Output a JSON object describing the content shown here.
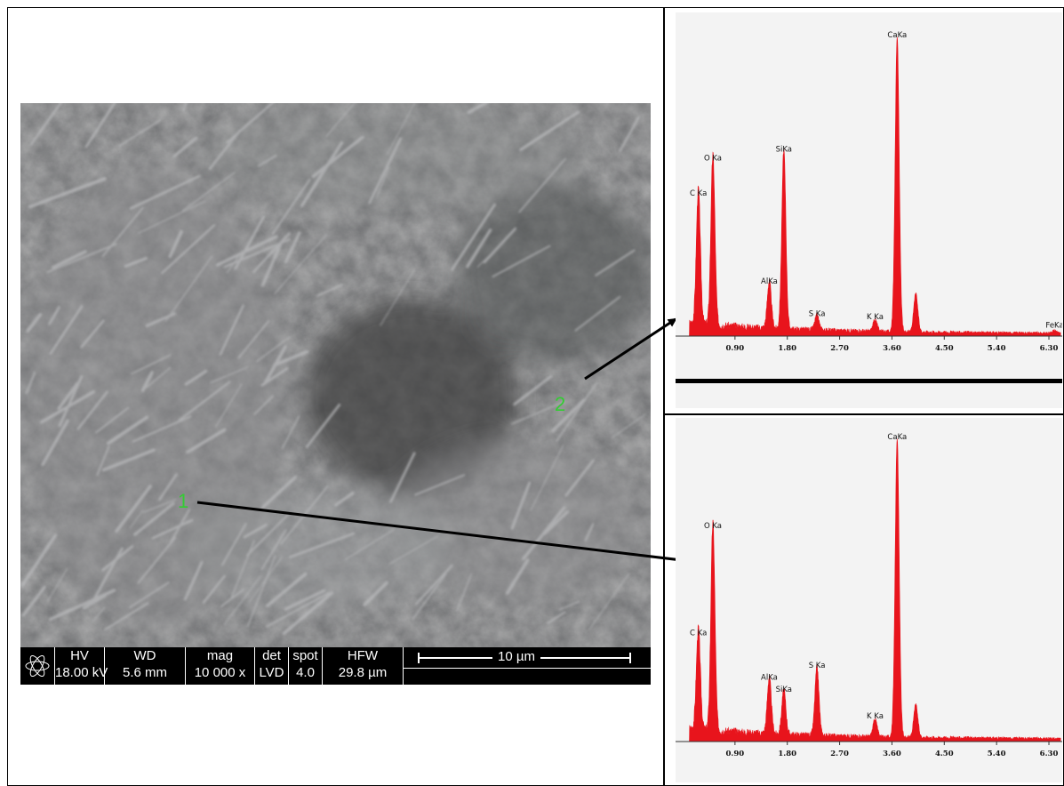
{
  "sem": {
    "databar": {
      "hv_label": "HV",
      "hv_value": "18.00 kV",
      "wd_label": "WD",
      "wd_value": "5.6 mm",
      "mag_label": "mag",
      "mag_value": "10 000 x",
      "det_label": "det",
      "det_value": "LVD",
      "spot_label": "spot",
      "spot_value": "4.0",
      "hfw_label": "HFW",
      "hfw_value": "29.8 µm",
      "scale_label": "10 µm"
    },
    "point_labels": [
      "1",
      "2"
    ]
  },
  "colors": {
    "spectrum": "#e8141c",
    "spectrum_bg": "#f3f3f3",
    "point_label": "#33cc33"
  },
  "chart_data": [
    {
      "type": "area",
      "name_ref": "spectrum-point-2",
      "xlim": [
        0,
        6.5
      ],
      "ticks": [
        "0.90",
        "1.80",
        "2.70",
        "3.60",
        "4.50",
        "5.40",
        "6.30"
      ],
      "peaks": [
        {
          "label": "C Ka",
          "x": 0.27,
          "y": 0.46
        },
        {
          "label": "O Ka",
          "x": 0.52,
          "y": 0.58
        },
        {
          "label": "AlKa",
          "x": 1.49,
          "y": 0.16
        },
        {
          "label": "SiKa",
          "x": 1.74,
          "y": 0.61
        },
        {
          "label": "S Ka",
          "x": 2.31,
          "y": 0.05
        },
        {
          "label": "K Ka",
          "x": 3.31,
          "y": 0.04
        },
        {
          "label": "CaKa",
          "x": 3.69,
          "y": 1.0
        },
        {
          "label": "",
          "x": 4.01,
          "y": 0.13
        },
        {
          "label": "FeKa",
          "x": 6.4,
          "y": 0.01
        }
      ]
    },
    {
      "type": "area",
      "name_ref": "spectrum-point-1",
      "xlim": [
        0,
        6.5
      ],
      "ticks": [
        "0.90",
        "1.80",
        "2.70",
        "3.60",
        "4.50",
        "5.40",
        "6.30"
      ],
      "peaks": [
        {
          "label": "C Ka",
          "x": 0.27,
          "y": 0.34
        },
        {
          "label": "O Ka",
          "x": 0.52,
          "y": 0.7
        },
        {
          "label": "AlKa",
          "x": 1.49,
          "y": 0.19
        },
        {
          "label": "SiKa",
          "x": 1.74,
          "y": 0.15
        },
        {
          "label": "S Ka",
          "x": 2.31,
          "y": 0.23
        },
        {
          "label": "K Ka",
          "x": 3.31,
          "y": 0.06
        },
        {
          "label": "CaKa",
          "x": 3.69,
          "y": 1.0
        },
        {
          "label": "",
          "x": 4.01,
          "y": 0.11
        }
      ]
    }
  ]
}
